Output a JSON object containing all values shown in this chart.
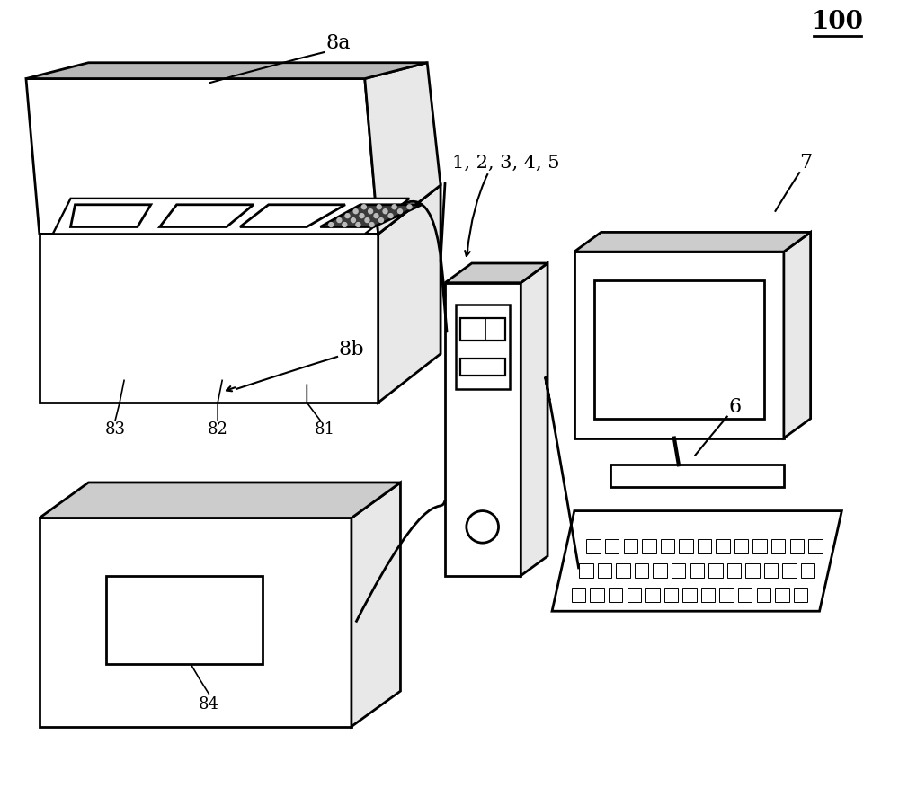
{
  "fig_width": 10.0,
  "fig_height": 8.77,
  "dpi": 100,
  "bg_color": "#ffffff",
  "lc": "#000000",
  "lw": 2.0,
  "gray_face": "#e8e8e8",
  "dark_face": "#cccccc",
  "darker_face": "#b8b8b8",
  "dot_fill": "#666666"
}
